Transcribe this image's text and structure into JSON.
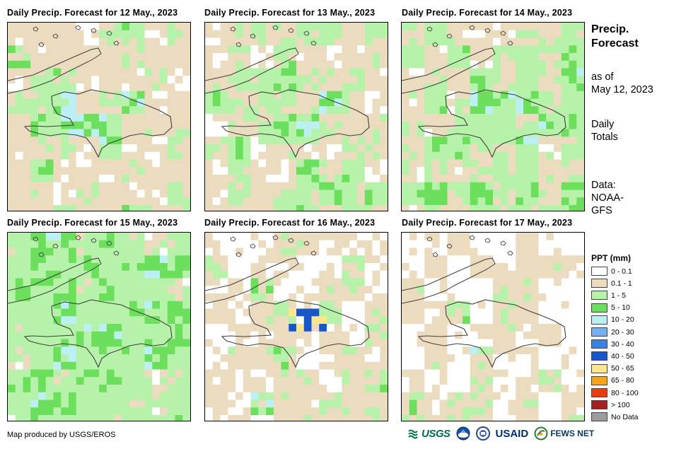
{
  "panels": [
    {
      "title": "Daily Precip. Forecast for 12 May., 2023",
      "seed": 11,
      "mix": [
        0.2,
        0.42,
        0.22,
        0.12,
        0.04,
        0.0
      ],
      "hot": []
    },
    {
      "title": "Daily Precip. Forecast for 13 May., 2023",
      "seed": 23,
      "mix": [
        0.24,
        0.3,
        0.3,
        0.12,
        0.04,
        0.0
      ],
      "hot": []
    },
    {
      "title": "Daily Precip. Forecast for 14 May., 2023",
      "seed": 37,
      "mix": [
        0.12,
        0.28,
        0.4,
        0.17,
        0.03,
        0.0
      ],
      "hot": []
    },
    {
      "title": "Daily Precip. Forecast for 15 May., 2023",
      "seed": 41,
      "mix": [
        0.08,
        0.12,
        0.52,
        0.2,
        0.08,
        0.0
      ],
      "hot": []
    },
    {
      "title": "Daily Precip. Forecast for 16 May., 2023",
      "seed": 53,
      "mix": [
        0.36,
        0.34,
        0.2,
        0.06,
        0.04,
        0.0
      ],
      "hot": [
        6,
        7
      ]
    },
    {
      "title": "Daily Precip. Forecast for 17 May., 2023",
      "seed": 67,
      "mix": [
        0.42,
        0.4,
        0.14,
        0.02,
        0.02,
        0.0
      ],
      "hot": []
    }
  ],
  "side": {
    "title_line1": "Precip.",
    "title_line2": "Forecast",
    "asof_line1": "as of",
    "asof_line2": "May 12, 2023",
    "daily_line1": "Daily",
    "daily_line2": "Totals",
    "data_line1": "Data:",
    "data_line2": "NOAA-",
    "data_line3": "GFS"
  },
  "legend": {
    "title": "PPT (mm)",
    "items": [
      {
        "label": "0 - 0.1",
        "color": "#ffffff"
      },
      {
        "label": "0.1 - 1",
        "color": "#ecdcbf"
      },
      {
        "label": "1 - 5",
        "color": "#b6f2a9"
      },
      {
        "label": "5 - 10",
        "color": "#6ce05c"
      },
      {
        "label": "10 - 20",
        "color": "#bdf0f5"
      },
      {
        "label": "20 - 30",
        "color": "#72b0ee"
      },
      {
        "label": "30 - 40",
        "color": "#3c82e0"
      },
      {
        "label": "40 - 50",
        "color": "#1856cc"
      },
      {
        "label": "50 - 65",
        "color": "#fde68c"
      },
      {
        "label": "65 - 80",
        "color": "#f4a51c"
      },
      {
        "label": "80 - 100",
        "color": "#f03c0c"
      },
      {
        "label": "> 100",
        "color": "#a81e1e"
      },
      {
        "label": "No Data",
        "color": "#9b9b9b"
      }
    ]
  },
  "footer": {
    "credit": "Map produced by USGS/EROS",
    "logos": {
      "usgs": "USGS",
      "usaid": "USAID",
      "fews": "FEWS NET"
    }
  }
}
